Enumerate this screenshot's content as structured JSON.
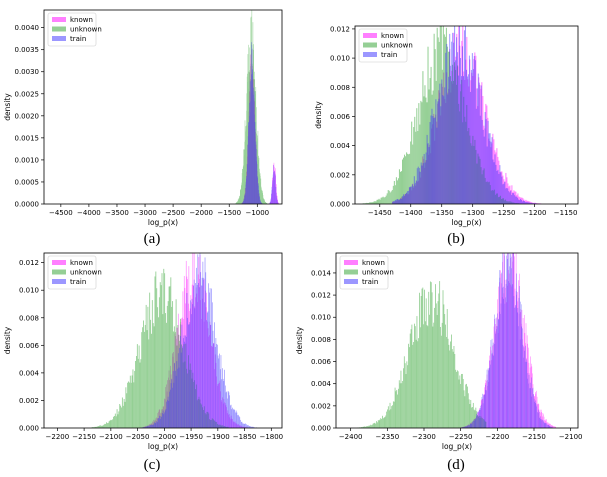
{
  "chart_data": [
    {
      "type": "histogram",
      "caption": "(a)",
      "xlabel": "log_p(x)",
      "ylabel": "density",
      "xlim": [
        -4800,
        -560
      ],
      "ylim": [
        0,
        0.0044
      ],
      "xticks": [
        -4500,
        -4000,
        -3500,
        -3000,
        -2500,
        -2000,
        -1500,
        -1000
      ],
      "yticks": [
        0.0,
        0.0005,
        0.001,
        0.0015,
        0.002,
        0.0025,
        0.003,
        0.0035,
        0.004
      ],
      "ytick_labels": [
        "0.0000",
        "0.0005",
        "0.0010",
        "0.0015",
        "0.0020",
        "0.0025",
        "0.0030",
        "0.0035",
        "0.0040"
      ],
      "legend_position": "top-left",
      "series": [
        {
          "name": "known",
          "color": "#ff00ff",
          "range": [
            -1500,
            -620
          ],
          "peaks": [
            {
              "mu": -1100,
              "sigma": 55,
              "amp": 0.0031
            },
            {
              "mu": -700,
              "sigma": 28,
              "amp": 0.0009
            }
          ]
        },
        {
          "name": "unknown",
          "color": "#2ca02c",
          "range": [
            -1600,
            -800
          ],
          "peaks": [
            {
              "mu": -1110,
              "sigma": 85,
              "amp": 0.0037
            }
          ]
        },
        {
          "name": "train",
          "color": "#3a2fff",
          "range": [
            -1500,
            -620
          ],
          "peaks": [
            {
              "mu": -1095,
              "sigma": 55,
              "amp": 0.0031
            },
            {
              "mu": -705,
              "sigma": 28,
              "amp": 0.0008
            }
          ]
        }
      ]
    },
    {
      "type": "histogram",
      "caption": "(b)",
      "xlabel": "log_p(x)",
      "ylabel": "density",
      "xlim": [
        -1490,
        -1130
      ],
      "ylim": [
        0,
        0.0122
      ],
      "xticks": [
        -1450,
        -1400,
        -1350,
        -1300,
        -1250,
        -1200,
        -1150
      ],
      "yticks": [
        0.0,
        0.002,
        0.004,
        0.006,
        0.008,
        0.01,
        0.012
      ],
      "ytick_labels": [
        "0.000",
        "0.002",
        "0.004",
        "0.006",
        "0.008",
        "0.010",
        "0.012"
      ],
      "legend_position": "top-left",
      "series": [
        {
          "name": "known",
          "color": "#ff00ff",
          "range": [
            -1430,
            -1155
          ],
          "peaks": [
            {
              "mu": -1318,
              "sigma": 38,
              "amp": 0.0105
            }
          ]
        },
        {
          "name": "unknown",
          "color": "#2ca02c",
          "range": [
            -1480,
            -1200
          ],
          "peaks": [
            {
              "mu": -1350,
              "sigma": 38,
              "amp": 0.0105
            }
          ]
        },
        {
          "name": "train",
          "color": "#3a2fff",
          "range": [
            -1430,
            -1160
          ],
          "peaks": [
            {
              "mu": -1322,
              "sigma": 37,
              "amp": 0.0107
            }
          ]
        }
      ]
    },
    {
      "type": "histogram",
      "caption": "(c)",
      "xlabel": "log_p(x)",
      "ylabel": "density",
      "xlim": [
        -2225,
        -1780
      ],
      "ylim": [
        0,
        0.0127
      ],
      "xticks": [
        -2200,
        -2150,
        -2100,
        -2050,
        -2000,
        -1950,
        -1900,
        -1850,
        -1800
      ],
      "yticks": [
        0.0,
        0.002,
        0.004,
        0.006,
        0.008,
        0.01,
        0.012
      ],
      "ytick_labels": [
        "0.000",
        "0.002",
        "0.004",
        "0.006",
        "0.008",
        "0.010",
        "0.012"
      ],
      "legend_position": "top-left",
      "series": [
        {
          "name": "known",
          "color": "#ff00ff",
          "range": [
            -2040,
            -1830
          ],
          "peaks": [
            {
              "mu": -1945,
              "sigma": 30,
              "amp": 0.0112
            }
          ]
        },
        {
          "name": "unknown",
          "color": "#2ca02c",
          "range": [
            -2160,
            -1880
          ],
          "peaks": [
            {
              "mu": -2005,
              "sigma": 40,
              "amp": 0.0098
            }
          ]
        },
        {
          "name": "train",
          "color": "#3a2fff",
          "range": [
            -2045,
            -1815
          ],
          "peaks": [
            {
              "mu": -1935,
              "sigma": 32,
              "amp": 0.0108
            }
          ]
        }
      ]
    },
    {
      "type": "histogram",
      "caption": "(d)",
      "xlabel": "log_p(x)",
      "ylabel": "density",
      "xlim": [
        -2420,
        -2090
      ],
      "ylim": [
        0,
        0.0158
      ],
      "xticks": [
        -2400,
        -2350,
        -2300,
        -2250,
        -2200,
        -2150,
        -2100
      ],
      "yticks": [
        0.0,
        0.002,
        0.004,
        0.006,
        0.008,
        0.01,
        0.012,
        0.014
      ],
      "ytick_labels": [
        "0.000",
        "0.002",
        "0.004",
        "0.006",
        "0.008",
        "0.010",
        "0.012",
        "0.014"
      ],
      "legend_position": "top-left",
      "series": [
        {
          "name": "known",
          "color": "#ff00ff",
          "range": [
            -2255,
            -2120
          ],
          "peaks": [
            {
              "mu": -2183,
              "sigma": 20,
              "amp": 0.0146
            }
          ]
        },
        {
          "name": "unknown",
          "color": "#2ca02c",
          "range": [
            -2410,
            -2215
          ],
          "peaks": [
            {
              "mu": -2290,
              "sigma": 30,
              "amp": 0.0118
            }
          ]
        },
        {
          "name": "train",
          "color": "#3a2fff",
          "range": [
            -2255,
            -2125
          ],
          "peaks": [
            {
              "mu": -2185,
              "sigma": 19,
              "amp": 0.0146
            }
          ]
        }
      ]
    }
  ]
}
